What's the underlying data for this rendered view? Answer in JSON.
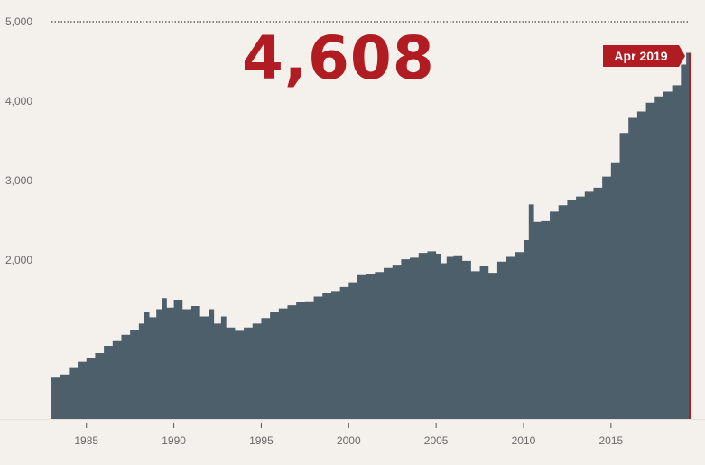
{
  "headline_value": "4,608",
  "latest_label": "Apr 2019",
  "colors": {
    "area": "#4d5f6b",
    "accent": "#b01c22",
    "background": "#f4f1ec"
  },
  "chart_data": {
    "type": "area",
    "title": "",
    "xlabel": "",
    "ylabel": "",
    "ylim": [
      0,
      5000
    ],
    "xlim": [
      1983,
      2019.5
    ],
    "y_ticks": [
      {
        "value": 2000,
        "label": "2,000"
      },
      {
        "value": 3000,
        "label": "3,000"
      },
      {
        "value": 4000,
        "label": "4,000"
      },
      {
        "value": 5000,
        "label": "5,000"
      }
    ],
    "x_ticks": [
      {
        "value": 1985,
        "label": "1985"
      },
      {
        "value": 1990,
        "label": "1990"
      },
      {
        "value": 1995,
        "label": "1995"
      },
      {
        "value": 2000,
        "label": "2000"
      },
      {
        "value": 2005,
        "label": "2005"
      },
      {
        "value": 2010,
        "label": "2010"
      },
      {
        "value": 2015,
        "label": "2015"
      }
    ],
    "grid": false,
    "series": [
      {
        "x": [
          1983.0,
          1983.5,
          1984.0,
          1984.5,
          1985.0,
          1985.5,
          1986.0,
          1986.5,
          1987.0,
          1987.5,
          1988.0,
          1988.3,
          1988.6,
          1989.0,
          1989.3,
          1989.6,
          1990.0,
          1990.5,
          1991.0,
          1991.5,
          1992.0,
          1992.3,
          1992.7,
          1993.0,
          1993.5,
          1994.0,
          1994.5,
          1995.0,
          1995.5,
          1996.0,
          1996.5,
          1997.0,
          1997.5,
          1998.0,
          1998.5,
          1999.0,
          1999.5,
          2000.0,
          2000.5,
          2001.0,
          2001.5,
          2002.0,
          2002.5,
          2003.0,
          2003.5,
          2004.0,
          2004.5,
          2005.0,
          2005.3,
          2005.6,
          2006.0,
          2006.5,
          2007.0,
          2007.5,
          2008.0,
          2008.5,
          2009.0,
          2009.5,
          2010.0,
          2010.3,
          2010.6,
          2011.0,
          2011.5,
          2012.0,
          2012.5,
          2013.0,
          2013.5,
          2014.0,
          2014.5,
          2015.0,
          2015.5,
          2016.0,
          2016.5,
          2017.0,
          2017.5,
          2018.0,
          2018.5,
          2019.0,
          2019.3
        ],
        "y": [
          520,
          560,
          640,
          720,
          770,
          830,
          920,
          980,
          1060,
          1120,
          1200,
          1350,
          1280,
          1380,
          1520,
          1400,
          1500,
          1380,
          1420,
          1290,
          1380,
          1200,
          1290,
          1150,
          1110,
          1150,
          1200,
          1270,
          1350,
          1390,
          1430,
          1470,
          1480,
          1540,
          1580,
          1610,
          1660,
          1720,
          1810,
          1820,
          1850,
          1900,
          1930,
          2010,
          2030,
          2090,
          2110,
          2080,
          1960,
          2040,
          2060,
          1990,
          1860,
          1920,
          1840,
          1980,
          2040,
          2100,
          2250,
          2700,
          2480,
          2490,
          2610,
          2690,
          2760,
          2800,
          2860,
          2910,
          3050,
          3230,
          3600,
          3790,
          3870,
          3980,
          4060,
          4120,
          4200,
          4460,
          4608
        ]
      }
    ]
  }
}
